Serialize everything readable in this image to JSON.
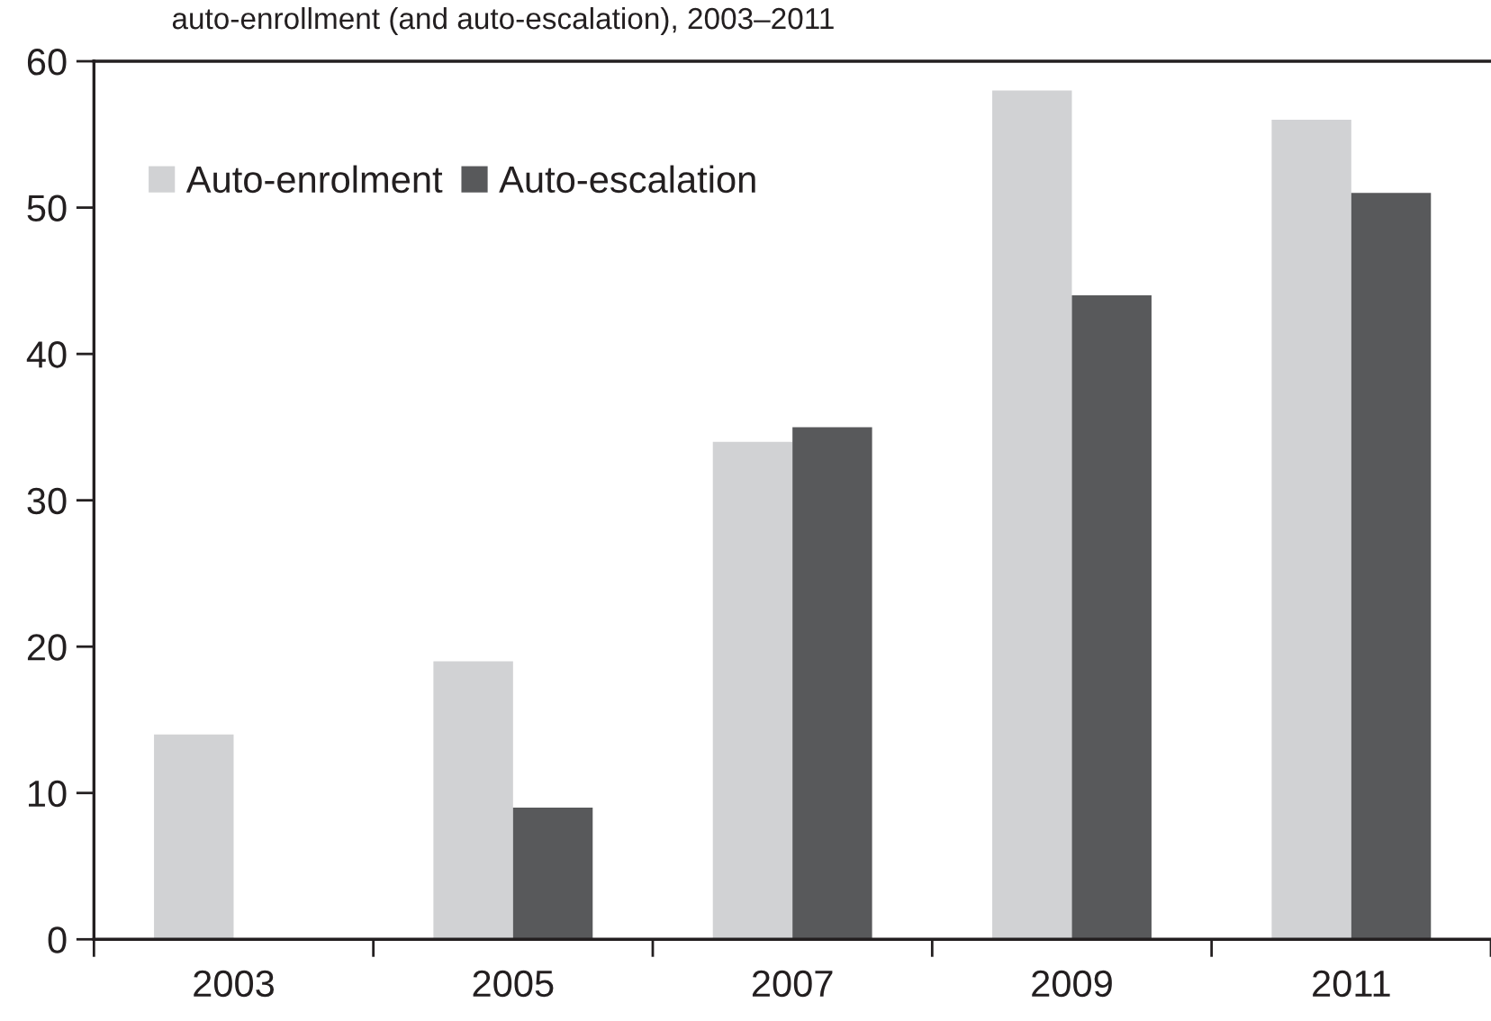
{
  "chart_data": {
    "type": "bar",
    "title": "auto-enrollment (and auto-escalation), 2003–2011",
    "categories": [
      "2003",
      "2005",
      "2007",
      "2009",
      "2011"
    ],
    "series": [
      {
        "name": "Auto-enrolment",
        "color": "#d1d2d4",
        "values": [
          14,
          19,
          34,
          58,
          56
        ]
      },
      {
        "name": "Auto-escalation",
        "color": "#58595b",
        "values": [
          null,
          9,
          35,
          44,
          51
        ]
      }
    ],
    "ylim": [
      0,
      60
    ],
    "yticks": [
      0,
      10,
      20,
      30,
      40,
      50,
      60
    ],
    "grid": false,
    "legend": "top left"
  }
}
